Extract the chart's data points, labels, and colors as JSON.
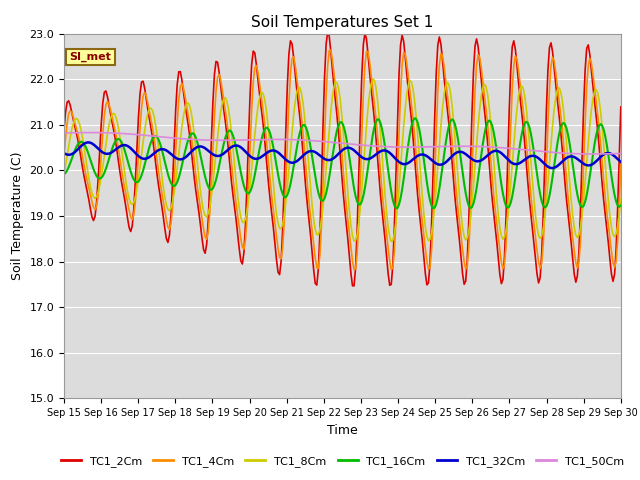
{
  "title": "Soil Temperatures Set 1",
  "xlabel": "Time",
  "ylabel": "Soil Temperature (C)",
  "ylim": [
    15.0,
    23.0
  ],
  "yticks": [
    15.0,
    16.0,
    17.0,
    18.0,
    19.0,
    20.0,
    21.0,
    22.0,
    23.0
  ],
  "xtick_labels": [
    "Sep 15",
    "Sep 16",
    "Sep 17",
    "Sep 18",
    "Sep 19",
    "Sep 20",
    "Sep 21",
    "Sep 22",
    "Sep 23",
    "Sep 24",
    "Sep 25",
    "Sep 26",
    "Sep 27",
    "Sep 28",
    "Sep 29",
    "Sep 30"
  ],
  "annotation_label": "SI_met",
  "annotation_bg": "#ffff99",
  "annotation_border": "#8B6914",
  "annotation_text_color": "#8B0000",
  "background_color": "#dcdcdc",
  "figure_bg": "#ffffff",
  "series": [
    {
      "label": "TC1_2Cm",
      "color": "#dd0000",
      "lw": 1.2
    },
    {
      "label": "TC1_4Cm",
      "color": "#ff8c00",
      "lw": 1.2
    },
    {
      "label": "TC1_8Cm",
      "color": "#cccc00",
      "lw": 1.2
    },
    {
      "label": "TC1_16Cm",
      "color": "#00bb00",
      "lw": 1.5
    },
    {
      "label": "TC1_32Cm",
      "color": "#0000cc",
      "lw": 1.8
    },
    {
      "label": "TC1_50Cm",
      "color": "#dd88dd",
      "lw": 1.2
    }
  ]
}
